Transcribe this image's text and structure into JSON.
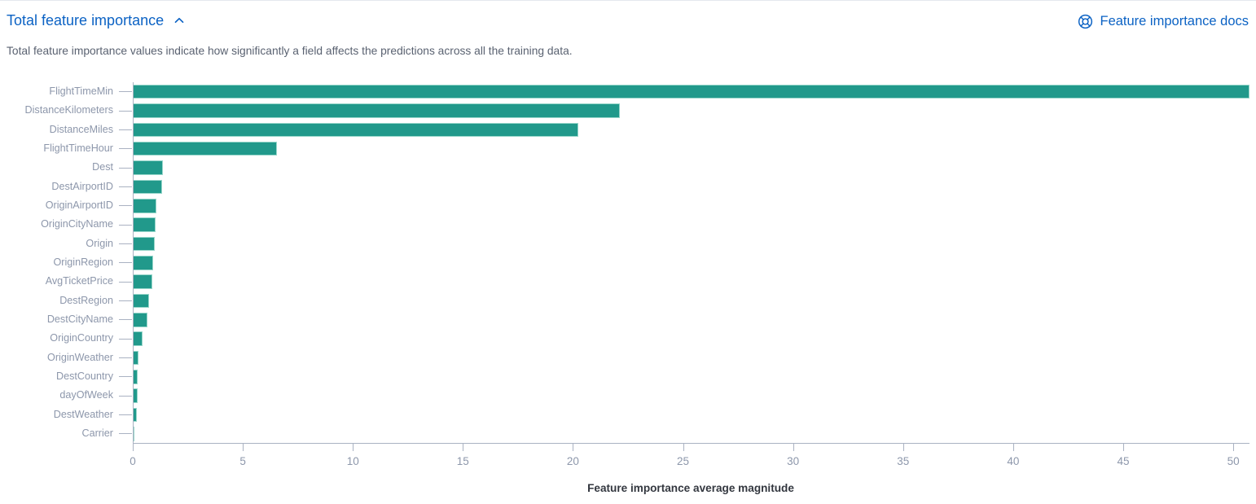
{
  "header": {
    "title": "Total feature importance",
    "docs_link_label": "Feature importance docs",
    "description": "Total feature importance values indicate how significantly a field affects the predictions across all the training data."
  },
  "colors": {
    "link_blue": "#0b62c4",
    "bar_fill": "#21998b",
    "axis_line": "#aab2c2",
    "axis_label": "#8d97ab",
    "description_text": "#5a6271",
    "axis_title_text": "#33373f"
  },
  "icons": {
    "collapse": "chevron-up-icon",
    "docs": "help-life-ring-icon"
  },
  "chart_data": {
    "type": "bar",
    "orientation": "horizontal",
    "title": "",
    "xlabel": "Feature importance average magnitude",
    "ylabel": "",
    "grid": false,
    "legend": false,
    "xlim": [
      0,
      50.7
    ],
    "xticks": [
      0,
      5,
      10,
      15,
      20,
      25,
      30,
      35,
      40,
      45,
      50
    ],
    "categories": [
      "FlightTimeMin",
      "DistanceKilometers",
      "DistanceMiles",
      "FlightTimeHour",
      "Dest",
      "DestAirportID",
      "OriginAirportID",
      "OriginCityName",
      "Origin",
      "OriginRegion",
      "AvgTicketPrice",
      "DestRegion",
      "DestCityName",
      "OriginCountry",
      "OriginWeather",
      "DestCountry",
      "dayOfWeek",
      "DestWeather",
      "Carrier"
    ],
    "values": [
      50.7,
      22.1,
      20.2,
      6.5,
      1.35,
      1.3,
      1.05,
      1.0,
      0.95,
      0.9,
      0.85,
      0.7,
      0.62,
      0.42,
      0.21,
      0.19,
      0.17,
      0.14,
      0.04
    ]
  }
}
